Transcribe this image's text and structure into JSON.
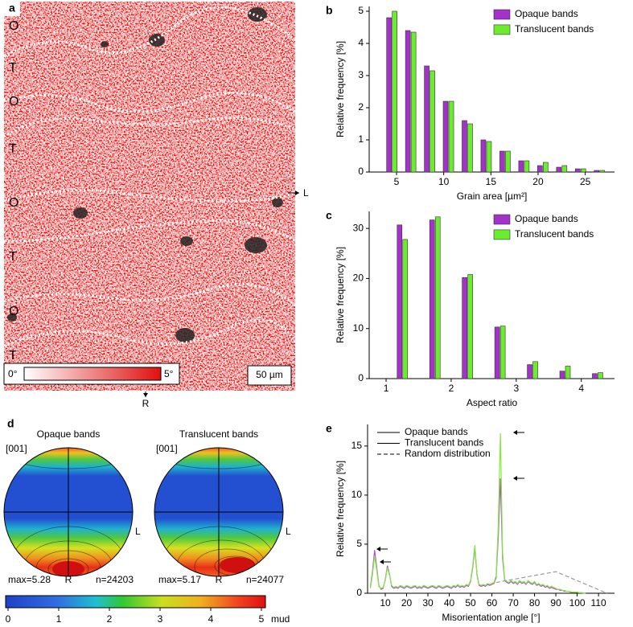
{
  "panel_a": {
    "label": "a",
    "band_labels": [
      "O",
      "T",
      "O",
      "T",
      "O",
      "T",
      "O",
      "T"
    ],
    "scale_min": "0°",
    "scale_max": "5°",
    "scale_bar": "50 µm",
    "direction_right": "L",
    "direction_bottom": "R"
  },
  "chart_data": [
    {
      "type": "bar",
      "label": "b",
      "xlabel": "Grain area [µm²]",
      "ylabel": "Relative frequency [%]",
      "x": [
        4.5,
        6.5,
        8.5,
        10.5,
        12.5,
        14.5,
        16.5,
        18.5,
        20.5,
        22.5,
        24.5,
        26.5
      ],
      "series": [
        {
          "name": "Opaque bands",
          "color": "#a232c8",
          "values": [
            4.8,
            4.4,
            3.3,
            2.2,
            1.6,
            1.0,
            0.65,
            0.35,
            0.2,
            0.15,
            0.1,
            0.05
          ]
        },
        {
          "name": "Translucent bands",
          "color": "#6bec2e",
          "values": [
            5.0,
            4.35,
            3.15,
            2.2,
            1.5,
            0.95,
            0.65,
            0.35,
            0.3,
            0.2,
            0.1,
            0.05
          ]
        }
      ],
      "xlim": [
        2.1,
        28.1
      ],
      "xticks": [
        5,
        10,
        15,
        20,
        25
      ],
      "ylim": [
        0,
        5.15
      ],
      "yticks": [
        0,
        1,
        2,
        3,
        4,
        5
      ],
      "legend": "upper right",
      "grid": false
    },
    {
      "type": "bar",
      "label": "c",
      "xlabel": "Aspect ratio",
      "ylabel": "Relative frequency [%]",
      "x": [
        1.25,
        1.75,
        2.25,
        2.75,
        3.25,
        3.75,
        4.25
      ],
      "series": [
        {
          "name": "Opaque bands",
          "color": "#a232c8",
          "values": [
            30.7,
            31.7,
            20.2,
            10.3,
            2.8,
            1.5,
            1.0
          ]
        },
        {
          "name": "Translucent bands",
          "color": "#6bec2e",
          "values": [
            27.8,
            32.3,
            20.8,
            10.5,
            3.4,
            2.5,
            1.2
          ]
        }
      ],
      "xlim": [
        0.74,
        4.51
      ],
      "xticks": [
        1,
        2,
        3,
        4
      ],
      "ylim": [
        0,
        33.4
      ],
      "yticks": [
        0,
        10,
        20,
        30
      ],
      "legend": "upper right",
      "grid": false
    },
    {
      "type": "line",
      "label": "e",
      "xlabel": "Misorientation angle [°]",
      "ylabel": "Relative frequency [%]",
      "series": [
        {
          "name": "Opaque bands",
          "color": "#b04ed4",
          "dash": false,
          "x": [
            3,
            4,
            5,
            6,
            7,
            8,
            9,
            10,
            11,
            12,
            13,
            14,
            15,
            16,
            17,
            18,
            19,
            20,
            21,
            22,
            23,
            24,
            25,
            26,
            27,
            28,
            29,
            30,
            31,
            32,
            33,
            34,
            35,
            36,
            37,
            38,
            39,
            40,
            41,
            42,
            43,
            44,
            45,
            46,
            47,
            48,
            49,
            50,
            51,
            52,
            53,
            54,
            55,
            56,
            57,
            58,
            59,
            60,
            61,
            62,
            63,
            64,
            65,
            66,
            67,
            68,
            69,
            70,
            71,
            72,
            73,
            74,
            75,
            76,
            77,
            78,
            79,
            80,
            81,
            82,
            83,
            84,
            85,
            86,
            87,
            88,
            89,
            90,
            91,
            92,
            93,
            94,
            95,
            96,
            97,
            98,
            99,
            100,
            101,
            102,
            103,
            104
          ],
          "values": [
            0.6,
            2.2,
            4.4,
            2.6,
            0.8,
            0.4,
            0.5,
            1.4,
            2.8,
            1.9,
            0.7,
            0.5,
            0.6,
            0.5,
            0.7,
            0.6,
            0.5,
            0.7,
            0.6,
            0.5,
            0.6,
            0.7,
            0.5,
            0.6,
            0.5,
            0.7,
            0.6,
            0.5,
            0.6,
            0.7,
            0.6,
            0.5,
            0.7,
            0.6,
            0.5,
            0.6,
            0.7,
            0.6,
            0.5,
            0.7,
            0.6,
            0.8,
            0.6,
            0.7,
            0.6,
            0.8,
            0.7,
            1.2,
            2.6,
            4.6,
            1.9,
            0.8,
            0.7,
            0.8,
            0.7,
            0.9,
            0.8,
            0.9,
            1.0,
            1.6,
            5.8,
            11.7,
            3.6,
            1.3,
            1.1,
            1.0,
            1.2,
            1.0,
            1.1,
            0.9,
            1.2,
            1.0,
            1.1,
            0.9,
            1.2,
            1.0,
            0.9,
            1.1,
            0.8,
            0.9,
            0.7,
            0.8,
            0.6,
            0.7,
            0.5,
            0.6,
            0.5,
            0.4,
            0.4,
            0.3,
            0.3,
            0.2,
            0.2,
            0.2,
            0.1,
            0.1,
            0.1,
            0.1,
            0.05,
            0.05,
            0.03,
            0.02
          ]
        },
        {
          "name": "Translucent bands",
          "color": "#82ea3c",
          "dash": false,
          "x": [
            3,
            4,
            5,
            6,
            7,
            8,
            9,
            10,
            11,
            12,
            13,
            14,
            15,
            16,
            17,
            18,
            19,
            20,
            21,
            22,
            23,
            24,
            25,
            26,
            27,
            28,
            29,
            30,
            31,
            32,
            33,
            34,
            35,
            36,
            37,
            38,
            39,
            40,
            41,
            42,
            43,
            44,
            45,
            46,
            47,
            48,
            49,
            50,
            51,
            52,
            53,
            54,
            55,
            56,
            57,
            58,
            59,
            60,
            61,
            62,
            63,
            64,
            65,
            66,
            67,
            68,
            69,
            70,
            71,
            72,
            73,
            74,
            75,
            76,
            77,
            78,
            79,
            80,
            81,
            82,
            83,
            84,
            85,
            86,
            87,
            88,
            89,
            90,
            91,
            92,
            93,
            94,
            95,
            96,
            97,
            98,
            99,
            100,
            101,
            102,
            103,
            104
          ],
          "values": [
            0.5,
            1.9,
            3.8,
            2.3,
            0.7,
            0.5,
            0.6,
            1.3,
            2.6,
            1.8,
            0.8,
            0.6,
            0.7,
            0.6,
            0.8,
            0.7,
            0.6,
            0.8,
            0.7,
            0.6,
            0.7,
            0.8,
            0.6,
            0.7,
            0.6,
            0.8,
            0.7,
            0.6,
            0.7,
            0.8,
            0.7,
            0.6,
            0.8,
            0.7,
            0.6,
            0.7,
            0.8,
            0.7,
            0.6,
            0.8,
            0.7,
            0.9,
            0.7,
            0.8,
            0.7,
            0.9,
            0.8,
            1.3,
            2.8,
            4.9,
            2.0,
            0.9,
            0.8,
            0.9,
            0.8,
            1.0,
            0.9,
            1.0,
            1.1,
            1.8,
            7.0,
            16.3,
            4.2,
            1.4,
            1.2,
            1.1,
            1.3,
            1.1,
            1.2,
            1.0,
            1.3,
            1.1,
            1.2,
            1.0,
            1.3,
            1.1,
            1.0,
            1.2,
            0.9,
            1.0,
            0.8,
            0.9,
            0.7,
            0.8,
            0.6,
            0.7,
            0.6,
            0.5,
            0.4,
            0.4,
            0.3,
            0.3,
            0.2,
            0.2,
            0.15,
            0.1,
            0.1,
            0.1,
            0.06,
            0.05,
            0.03,
            0.02
          ]
        },
        {
          "name": "Random distribution",
          "color": "#9a9a9a",
          "dash": true,
          "x": [
            62,
            90,
            114
          ],
          "values": [
            1.1,
            2.2,
            0
          ]
        }
      ],
      "xlim": [
        1.7,
        117.5
      ],
      "xticks": [
        10,
        20,
        30,
        40,
        50,
        60,
        70,
        80,
        90,
        100,
        110
      ],
      "ylim": [
        0,
        17.2
      ],
      "yticks": [
        0,
        5,
        10,
        15
      ],
      "legend": "upper left",
      "grid": false
    }
  ],
  "panel_d": {
    "label": "d",
    "pole_figures": [
      {
        "title": "Opaque bands",
        "axis": "[001]",
        "right": "L",
        "bottom": "R",
        "max": "max=5.28",
        "n": "n=24203"
      },
      {
        "title": "Translucent bands",
        "axis": "[001]",
        "right": "L",
        "bottom": "R",
        "max": "max=5.17",
        "n": "n=24077"
      }
    ],
    "colorbar_ticks": [
      0,
      1,
      2,
      3,
      4,
      5
    ],
    "colorbar_unit": "mud"
  }
}
